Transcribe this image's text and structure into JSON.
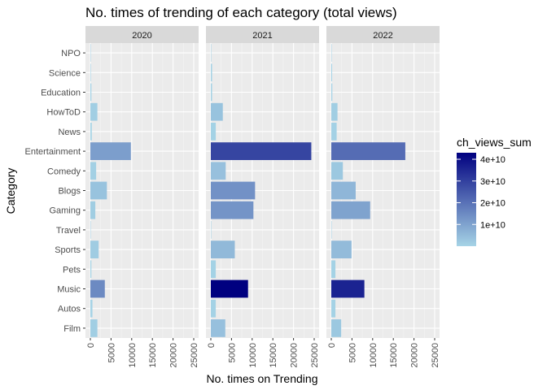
{
  "chart_data": {
    "type": "bar",
    "orientation": "horizontal",
    "title": "No. times of trending of each category (total views)",
    "xlabel": "No. times on Trending",
    "ylabel": "Category",
    "xlim": [
      0,
      25000
    ],
    "x_ticks": [
      "0",
      "5000",
      "10000",
      "15000",
      "20000",
      "25000"
    ],
    "categories": [
      "NPO",
      "Science",
      "Education",
      "HowToD",
      "News",
      "Entertainment",
      "Comedy",
      "Blogs",
      "Gaming",
      "Travel",
      "Sports",
      "Pets",
      "Music",
      "Autos",
      "Film"
    ],
    "legend": {
      "title": "ch_views_sum",
      "labels": [
        "1e+10",
        "2e+10",
        "3e+10",
        "4e+10"
      ],
      "values": [
        10000000000.0,
        20000000000.0,
        30000000000.0,
        40000000000.0
      ],
      "range": [
        0,
        43000000000.0
      ],
      "color_low": "#a6d4e6",
      "color_high": "#000080",
      "position": "right"
    },
    "grid": true,
    "panels": [
      {
        "name": "2020",
        "values": [
          60,
          120,
          250,
          1700,
          350,
          9800,
          1400,
          4000,
          1200,
          40,
          2000,
          250,
          3500,
          500,
          1700
        ],
        "color_values": [
          10000000.0,
          100000000.0,
          200000000.0,
          1200000000.0,
          100000000.0,
          11000000000.0,
          900000000.0,
          3500000000.0,
          1500000000.0,
          5000000.0,
          1600000000.0,
          100000000.0,
          15000000000.0,
          200000000.0,
          1300000000.0
        ]
      },
      {
        "name": "2021",
        "values": [
          80,
          300,
          300,
          2900,
          1200,
          24300,
          3600,
          10700,
          10300,
          100,
          5800,
          1200,
          9000,
          1200,
          3500
        ],
        "color_values": [
          20000000.0,
          300000000.0,
          300000000.0,
          3500000000.0,
          500000000.0,
          29000000000.0,
          4000000000.0,
          13500000000.0,
          13000000000.0,
          10000000.0,
          5500000000.0,
          500000000.0,
          43000000000.0,
          500000000.0,
          4000000000.0
        ]
      },
      {
        "name": "2022",
        "values": [
          80,
          200,
          250,
          1500,
          1300,
          17900,
          2800,
          5900,
          9400,
          70,
          4900,
          1000,
          8000,
          1000,
          2400
        ],
        "color_values": [
          20000000.0,
          200000000.0,
          200000000.0,
          1200000000.0,
          600000000.0,
          21000000000.0,
          2500000000.0,
          6000000000.0,
          10000000000.0,
          10000000.0,
          5000000000.0,
          400000000.0,
          36000000000.0,
          400000000.0,
          2500000000.0
        ]
      }
    ]
  }
}
